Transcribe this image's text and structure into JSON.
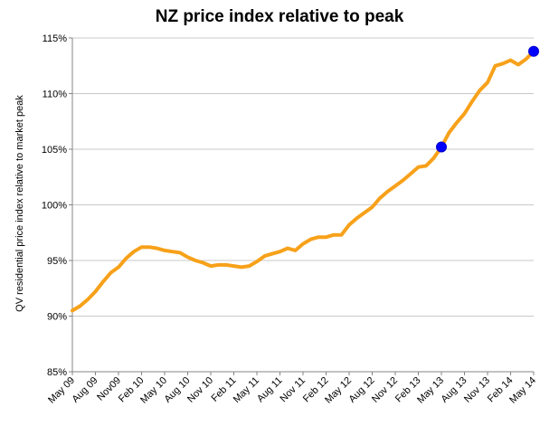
{
  "chart_data": {
    "type": "line",
    "title": "NZ price index relative to peak",
    "ylabel": "QV residential price index relative to market peak",
    "xlabel": "",
    "ylim": [
      85,
      115
    ],
    "yticks": [
      "85%",
      "90%",
      "95%",
      "100%",
      "105%",
      "110%",
      "115%"
    ],
    "ytick_values": [
      85,
      90,
      95,
      100,
      105,
      110,
      115
    ],
    "xticks": [
      "May 09",
      "Aug 09",
      "Nov09",
      "Feb 10",
      "May 10",
      "Aug 10",
      "Nov 10",
      "Feb 11",
      "May 11",
      "Aug 11",
      "Nov 11",
      "Feb 12",
      "May 12",
      "Aug 12",
      "Nov 12",
      "Feb 13",
      "May 13",
      "Aug 13",
      "Nov 13",
      "Feb 14",
      "May 14"
    ],
    "grid": true,
    "legend": "none",
    "line_color": "#f7a11a",
    "marker_color": "#0000ff",
    "series": [
      {
        "x": [
          "May 09",
          "Jun 09",
          "Jul 09",
          "Aug 09",
          "Sep 09",
          "Oct 09",
          "Nov 09",
          "Dec 09",
          "Jan 10",
          "Feb 10",
          "Mar 10",
          "Apr 10",
          "May 10",
          "Jun 10",
          "Jul 10",
          "Aug 10",
          "Sep 10",
          "Oct 10",
          "Nov 10",
          "Dec 10",
          "Jan 11",
          "Feb 11",
          "Mar 11",
          "Apr 11",
          "May 11",
          "Jun 11",
          "Jul 11",
          "Aug 11",
          "Sep 11",
          "Oct 11",
          "Nov 11",
          "Dec 11",
          "Jan 12",
          "Feb 12",
          "Mar 12",
          "Apr 12",
          "May 12",
          "Jun 12",
          "Jul 12",
          "Aug 12",
          "Sep 12",
          "Oct 12",
          "Nov 12",
          "Dec 12",
          "Jan 13",
          "Feb 13",
          "Mar 13",
          "Apr 13",
          "May 13",
          "Jun 13",
          "Jul 13",
          "Aug 13",
          "Sep 13",
          "Oct 13",
          "Nov 13",
          "Dec 13",
          "Jan 14",
          "Feb 14",
          "Mar 14",
          "Apr 14",
          "May 14"
        ],
        "values": [
          90.5,
          90.9,
          91.5,
          92.2,
          93.1,
          93.9,
          94.4,
          95.2,
          95.8,
          96.2,
          96.2,
          96.1,
          95.9,
          95.8,
          95.7,
          95.3,
          95.0,
          94.8,
          94.5,
          94.6,
          94.6,
          94.5,
          94.4,
          94.5,
          94.9,
          95.4,
          95.6,
          95.8,
          96.1,
          95.9,
          96.5,
          96.9,
          97.1,
          97.1,
          97.3,
          97.3,
          98.2,
          98.8,
          99.3,
          99.8,
          100.6,
          101.2,
          101.7,
          102.2,
          102.8,
          103.4,
          103.5,
          104.2,
          105.2,
          106.5,
          107.4,
          108.2,
          109.3,
          110.3,
          111.0,
          112.5,
          112.7,
          113.0,
          112.6,
          113.1,
          113.8
        ]
      }
    ],
    "highlighted_points": [
      {
        "x": "May 13",
        "value": 105.2
      },
      {
        "x": "May 14",
        "value": 113.8
      }
    ]
  }
}
